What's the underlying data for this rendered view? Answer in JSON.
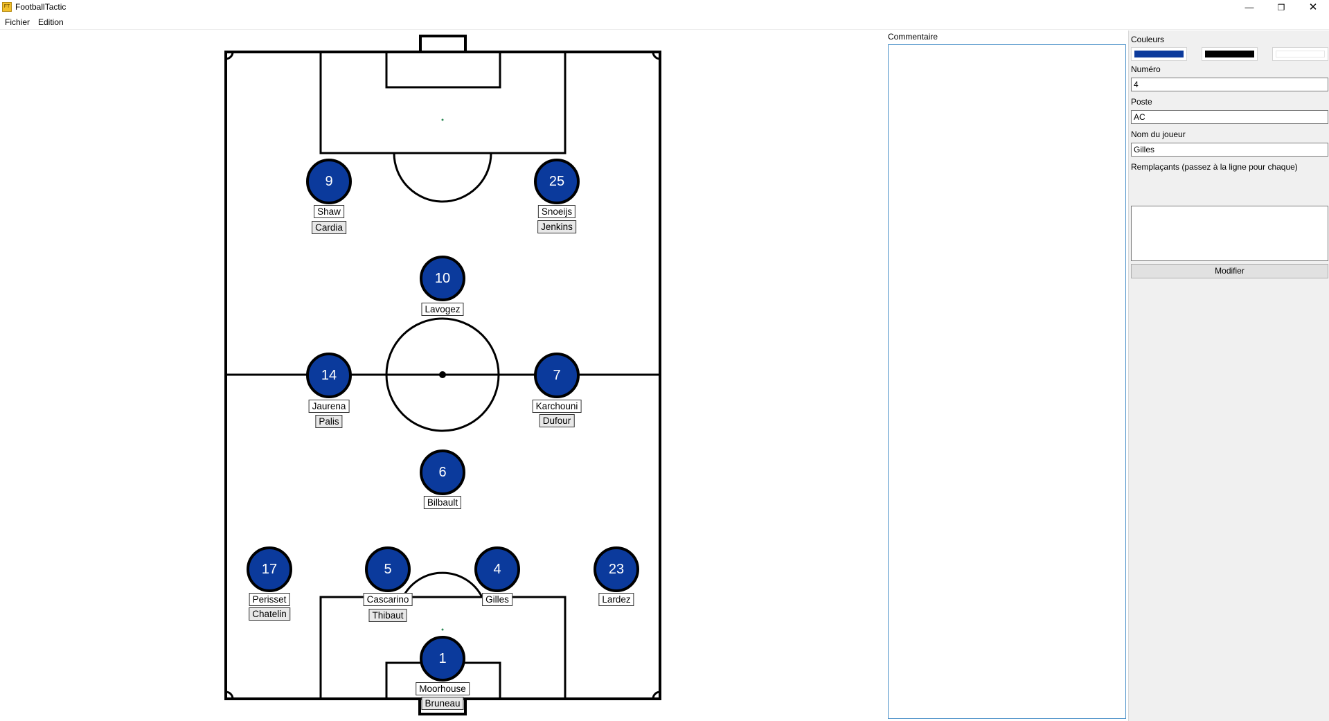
{
  "window": {
    "title": "FootballTactic",
    "icon_name": "football-tactic-app-icon",
    "icon_text": "FT",
    "controls": {
      "minimize": "—",
      "maximize": "❐",
      "close": "✕"
    }
  },
  "menu": {
    "items": [
      "Fichier",
      "Edition"
    ]
  },
  "colors": {
    "team_primary": "#0b3a9c",
    "team_border": "#000000",
    "team_secondary": "#ffffff"
  },
  "players": [
    {
      "number": "9",
      "name": "Shaw",
      "sub": "Cardia"
    },
    {
      "number": "25",
      "name": "Snoeijs",
      "sub": "Jenkins"
    },
    {
      "number": "10",
      "name": "Lavogez",
      "sub": ""
    },
    {
      "number": "14",
      "name": "Jaurena",
      "sub": "Palis"
    },
    {
      "number": "7",
      "name": "Karchouni",
      "sub": "Dufour"
    },
    {
      "number": "6",
      "name": "Bilbault",
      "sub": ""
    },
    {
      "number": "17",
      "name": "Perisset",
      "sub": "Chatelin"
    },
    {
      "number": "5",
      "name": "Cascarino",
      "sub": "Thibaut"
    },
    {
      "number": "4",
      "name": "Gilles",
      "sub": ""
    },
    {
      "number": "23",
      "name": "Lardez",
      "sub": ""
    },
    {
      "number": "1",
      "name": "Moorhouse",
      "sub": "Bruneau"
    }
  ],
  "comment": {
    "label": "Commentaire",
    "value": ""
  },
  "properties": {
    "colors_label": "Couleurs",
    "numero_label": "Numéro",
    "numero_value": "4",
    "poste_label": "Poste",
    "poste_value": "AC",
    "nom_label": "Nom du joueur",
    "nom_value": "Gilles",
    "remplacants_label": "Remplaçants (passez à la ligne pour chaque)",
    "remplacants_value": "",
    "modifier_label": "Modifier"
  }
}
